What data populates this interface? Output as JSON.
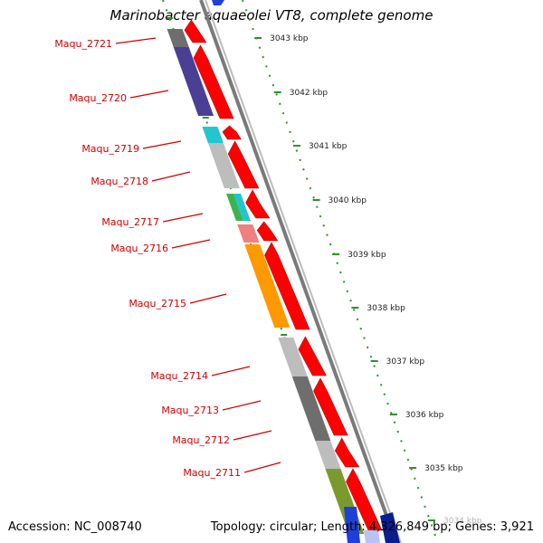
{
  "title": "Marinobacter aquaeolei VT8, complete genome",
  "footer": {
    "accession": "Accession: NC_008740",
    "stats": "Topology: circular; Length: 4,326,849 bp; Genes: 3,921"
  },
  "colors": {
    "forward_arrow": "#ff0000",
    "label": "#d40000",
    "tick": "#2f8f2f",
    "backbone": "#888888"
  },
  "genes": [
    {
      "name": "Maqu_2721",
      "color": "#6e6e6e"
    },
    {
      "name": "Maqu_2720",
      "color": "#4b3f95"
    },
    {
      "name": "Maqu_2719",
      "color": "#22c5d0"
    },
    {
      "name": "Maqu_2718",
      "color": "#bdbdbd"
    },
    {
      "name": "Maqu_2717",
      "color": "#3cb44b"
    },
    {
      "name": "Maqu_2716",
      "color": "#f08080"
    },
    {
      "name": "Maqu_2715",
      "color": "#ff9900"
    },
    {
      "name": "Maqu_2714",
      "color": "#bdbdbd"
    },
    {
      "name": "Maqu_2713",
      "color": "#6e6e6e"
    },
    {
      "name": "Maqu_2712",
      "color": "#bdbdbd"
    },
    {
      "name": "Maqu_2711",
      "color": "#7a9a2e"
    }
  ],
  "kbp_ticks": [
    "3043 kbp",
    "3042 kbp",
    "3041 kbp",
    "3040 kbp",
    "3039 kbp",
    "3038 kbp",
    "3037 kbp",
    "3036 kbp",
    "3035 kbp",
    "3034 kbp"
  ]
}
